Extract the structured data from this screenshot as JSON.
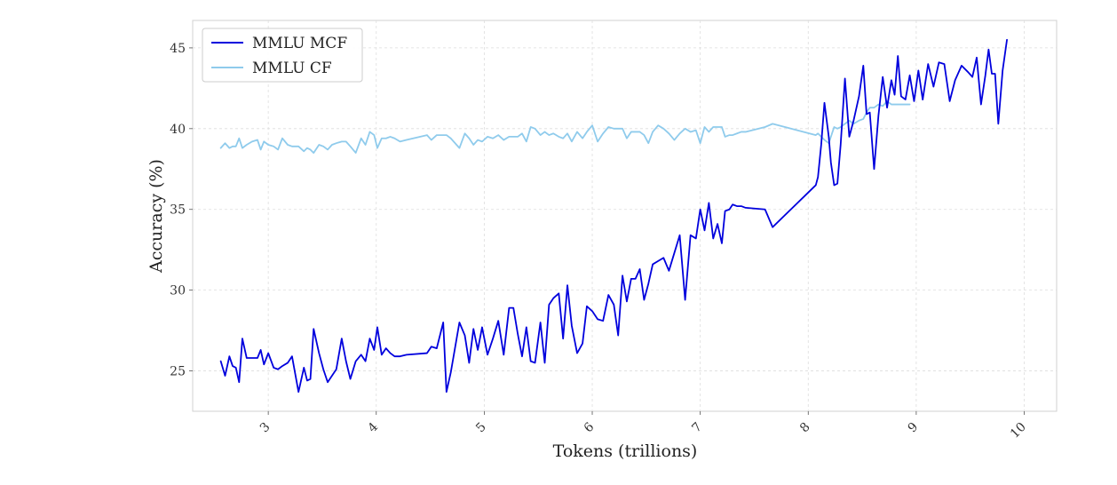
{
  "chart_data": {
    "type": "line",
    "xlabel": "Tokens (trillions)",
    "ylabel": "Accuracy (%)",
    "xlim": [
      2.3,
      10.3
    ],
    "ylim": [
      22.5,
      46.7
    ],
    "xticks": [
      3,
      4,
      5,
      6,
      7,
      8,
      9,
      10
    ],
    "yticks": [
      25,
      30,
      35,
      40,
      45
    ],
    "grid": true,
    "legend_position": "top-left",
    "series": [
      {
        "name": "MMLU MCF",
        "color": "#0000dd",
        "x": [
          2.56,
          2.6,
          2.64,
          2.67,
          2.7,
          2.73,
          2.76,
          2.8,
          2.85,
          2.9,
          2.93,
          2.96,
          3.0,
          3.05,
          3.09,
          3.13,
          3.18,
          3.22,
          3.28,
          3.33,
          3.36,
          3.39,
          3.42,
          3.47,
          3.51,
          3.55,
          3.59,
          3.63,
          3.68,
          3.72,
          3.76,
          3.81,
          3.86,
          3.9,
          3.94,
          3.98,
          4.01,
          4.05,
          4.09,
          4.13,
          4.17,
          4.22,
          4.28,
          4.47,
          4.51,
          4.56,
          4.62,
          4.65,
          4.69,
          4.77,
          4.82,
          4.86,
          4.9,
          4.94,
          4.98,
          5.03,
          5.08,
          5.13,
          5.18,
          5.23,
          5.27,
          5.31,
          5.35,
          5.39,
          5.43,
          5.47,
          5.52,
          5.56,
          5.6,
          5.64,
          5.69,
          5.73,
          5.77,
          5.81,
          5.86,
          5.91,
          5.95,
          6.0,
          6.05,
          6.1,
          6.15,
          6.2,
          6.24,
          6.28,
          6.32,
          6.36,
          6.4,
          6.44,
          6.48,
          6.52,
          6.56,
          6.61,
          6.66,
          6.71,
          6.76,
          6.81,
          6.86,
          6.91,
          6.96,
          7.0,
          7.04,
          7.08,
          7.12,
          7.16,
          7.2,
          7.23,
          7.27,
          7.3,
          7.34,
          7.38,
          7.42,
          7.6,
          7.67,
          8.07,
          8.09,
          8.12,
          8.15,
          8.19,
          8.21,
          8.24,
          8.27,
          8.3,
          8.34,
          8.38,
          8.42,
          8.47,
          8.51,
          8.54,
          8.57,
          8.61,
          8.65,
          8.69,
          8.73,
          8.77,
          8.8,
          8.83,
          8.86,
          8.9,
          8.94,
          8.98,
          9.02,
          9.06,
          9.11,
          9.16,
          9.21,
          9.26,
          9.31,
          9.36,
          9.42,
          9.48,
          9.52,
          9.56,
          9.6,
          9.64,
          9.67,
          9.7,
          9.73,
          9.76,
          9.8,
          9.84
        ],
        "values": [
          25.6,
          24.7,
          25.9,
          25.3,
          25.2,
          24.3,
          27.0,
          25.8,
          25.8,
          25.8,
          26.3,
          25.4,
          26.1,
          25.2,
          25.1,
          25.3,
          25.5,
          25.9,
          23.7,
          25.2,
          24.4,
          24.5,
          27.6,
          26.1,
          25.1,
          24.3,
          24.7,
          25.1,
          27.0,
          25.6,
          24.5,
          25.6,
          26.0,
          25.6,
          27.0,
          26.3,
          27.7,
          26.0,
          26.4,
          26.1,
          25.9,
          25.9,
          26.0,
          26.1,
          26.5,
          26.4,
          28.0,
          23.7,
          24.9,
          28.0,
          27.2,
          25.5,
          27.6,
          26.3,
          27.7,
          26.0,
          27.0,
          28.1,
          26.0,
          28.9,
          28.9,
          27.3,
          25.9,
          27.7,
          25.6,
          25.5,
          28.0,
          25.5,
          29.1,
          29.5,
          29.8,
          27.0,
          30.3,
          27.8,
          26.1,
          26.7,
          29.0,
          28.7,
          28.2,
          28.1,
          29.7,
          29.1,
          27.2,
          30.9,
          29.3,
          30.7,
          30.7,
          31.3,
          29.4,
          30.4,
          31.6,
          31.8,
          32.0,
          31.2,
          32.3,
          33.4,
          29.4,
          33.4,
          33.2,
          35.0,
          33.7,
          35.4,
          33.2,
          34.1,
          32.9,
          34.9,
          35.0,
          35.3,
          35.2,
          35.2,
          35.1,
          35.0,
          33.9,
          36.5,
          37.0,
          39.0,
          41.6,
          39.5,
          37.9,
          36.5,
          36.6,
          39.0,
          43.1,
          39.5,
          40.5,
          42.0,
          43.9,
          40.9,
          41.0,
          37.5,
          40.8,
          43.2,
          41.3,
          43.0,
          42.1,
          44.5,
          42.0,
          41.8,
          43.3,
          41.7,
          43.6,
          41.8,
          44.0,
          42.6,
          44.1,
          44.0,
          41.7,
          43.0,
          43.9,
          43.5,
          43.2,
          44.4,
          41.5,
          43.3,
          44.9,
          43.4,
          43.4,
          40.3,
          43.6,
          45.5
        ]
      },
      {
        "name": "MMLU CF",
        "color": "#8fcbec",
        "x": [
          2.56,
          2.6,
          2.64,
          2.67,
          2.7,
          2.73,
          2.76,
          2.8,
          2.85,
          2.9,
          2.93,
          2.96,
          3.0,
          3.05,
          3.09,
          3.13,
          3.18,
          3.22,
          3.28,
          3.33,
          3.36,
          3.39,
          3.42,
          3.47,
          3.51,
          3.55,
          3.59,
          3.63,
          3.68,
          3.72,
          3.76,
          3.81,
          3.86,
          3.9,
          3.94,
          3.98,
          4.01,
          4.05,
          4.09,
          4.13,
          4.17,
          4.22,
          4.28,
          4.47,
          4.51,
          4.56,
          4.62,
          4.65,
          4.69,
          4.77,
          4.82,
          4.86,
          4.9,
          4.94,
          4.98,
          5.03,
          5.08,
          5.13,
          5.18,
          5.23,
          5.27,
          5.31,
          5.35,
          5.39,
          5.43,
          5.47,
          5.52,
          5.56,
          5.6,
          5.64,
          5.69,
          5.73,
          5.77,
          5.81,
          5.86,
          5.91,
          5.95,
          6.0,
          6.05,
          6.1,
          6.15,
          6.2,
          6.24,
          6.28,
          6.32,
          6.36,
          6.4,
          6.44,
          6.48,
          6.52,
          6.56,
          6.61,
          6.66,
          6.71,
          6.76,
          6.81,
          6.86,
          6.91,
          6.96,
          7.0,
          7.04,
          7.08,
          7.12,
          7.16,
          7.2,
          7.23,
          7.27,
          7.3,
          7.34,
          7.38,
          7.42,
          7.6,
          7.67,
          8.07,
          8.09,
          8.12,
          8.15,
          8.19,
          8.21,
          8.24,
          8.27,
          8.3,
          8.34,
          8.38,
          8.42,
          8.47,
          8.51,
          8.54,
          8.57,
          8.61,
          8.65,
          8.69,
          8.73,
          8.77,
          8.8,
          8.83,
          8.86,
          8.9,
          8.94
        ],
        "values": [
          38.8,
          39.1,
          38.8,
          38.9,
          38.9,
          39.4,
          38.8,
          39.0,
          39.2,
          39.3,
          38.7,
          39.2,
          39.0,
          38.9,
          38.7,
          39.4,
          39.0,
          38.9,
          38.9,
          38.6,
          38.8,
          38.7,
          38.5,
          39.0,
          38.9,
          38.7,
          39.0,
          39.1,
          39.2,
          39.2,
          38.9,
          38.5,
          39.4,
          39.0,
          39.8,
          39.6,
          38.8,
          39.4,
          39.4,
          39.5,
          39.4,
          39.2,
          39.3,
          39.6,
          39.3,
          39.6,
          39.6,
          39.6,
          39.4,
          38.8,
          39.7,
          39.4,
          39.0,
          39.3,
          39.2,
          39.5,
          39.4,
          39.6,
          39.3,
          39.5,
          39.5,
          39.5,
          39.7,
          39.2,
          40.1,
          40.0,
          39.6,
          39.8,
          39.6,
          39.7,
          39.5,
          39.4,
          39.7,
          39.2,
          39.8,
          39.4,
          39.8,
          40.2,
          39.2,
          39.7,
          40.1,
          40.0,
          40.0,
          40.0,
          39.4,
          39.8,
          39.8,
          39.8,
          39.6,
          39.1,
          39.8,
          40.2,
          40.0,
          39.7,
          39.3,
          39.7,
          40.0,
          39.8,
          39.9,
          39.1,
          40.1,
          39.8,
          40.1,
          40.1,
          40.1,
          39.5,
          39.6,
          39.6,
          39.7,
          39.8,
          39.8,
          40.1,
          40.3,
          39.6,
          39.7,
          39.5,
          39.3,
          39.1,
          39.5,
          40.1,
          40.0,
          40.1,
          40.3,
          40.5,
          40.3,
          40.5,
          40.6,
          41.0,
          41.3,
          41.3,
          41.5,
          41.4,
          41.7,
          41.5,
          41.5,
          41.5,
          41.5,
          41.5,
          41.5
        ]
      }
    ]
  }
}
